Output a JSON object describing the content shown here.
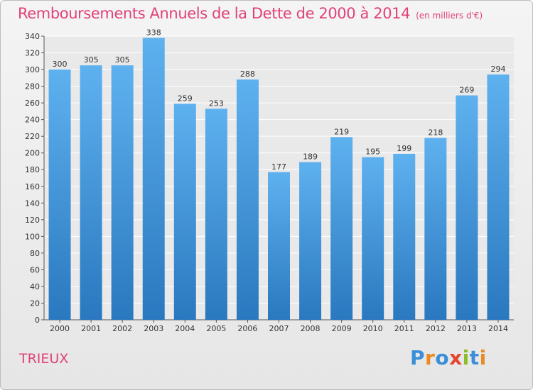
{
  "chart_data": {
    "type": "bar",
    "title": "Remboursements Annuels de la Dette de 2000 à 2014",
    "subtitle": "(en milliers d'€)",
    "categories": [
      "2000",
      "2001",
      "2002",
      "2003",
      "2004",
      "2005",
      "2006",
      "2007",
      "2008",
      "2009",
      "2010",
      "2011",
      "2012",
      "2013",
      "2014"
    ],
    "values": [
      300,
      305,
      305,
      338,
      259,
      253,
      288,
      177,
      189,
      219,
      195,
      199,
      218,
      269,
      294
    ],
    "ylim": [
      0,
      340
    ],
    "yticks": [
      0,
      20,
      40,
      60,
      80,
      100,
      120,
      140,
      160,
      180,
      200,
      220,
      240,
      260,
      280,
      300,
      320,
      340
    ],
    "grid": true,
    "bar_color": "#4a9fe0"
  },
  "footer": {
    "place": "TRIEUX",
    "logo": [
      "P",
      "r",
      "o",
      "x",
      "i",
      "t",
      "i"
    ],
    "logo_colors": [
      "#3a8fd8",
      "#e98a25",
      "#3a8fd8",
      "#e6462f",
      "#8bbd2a",
      "#3a8fd8",
      "#e98a25"
    ]
  }
}
